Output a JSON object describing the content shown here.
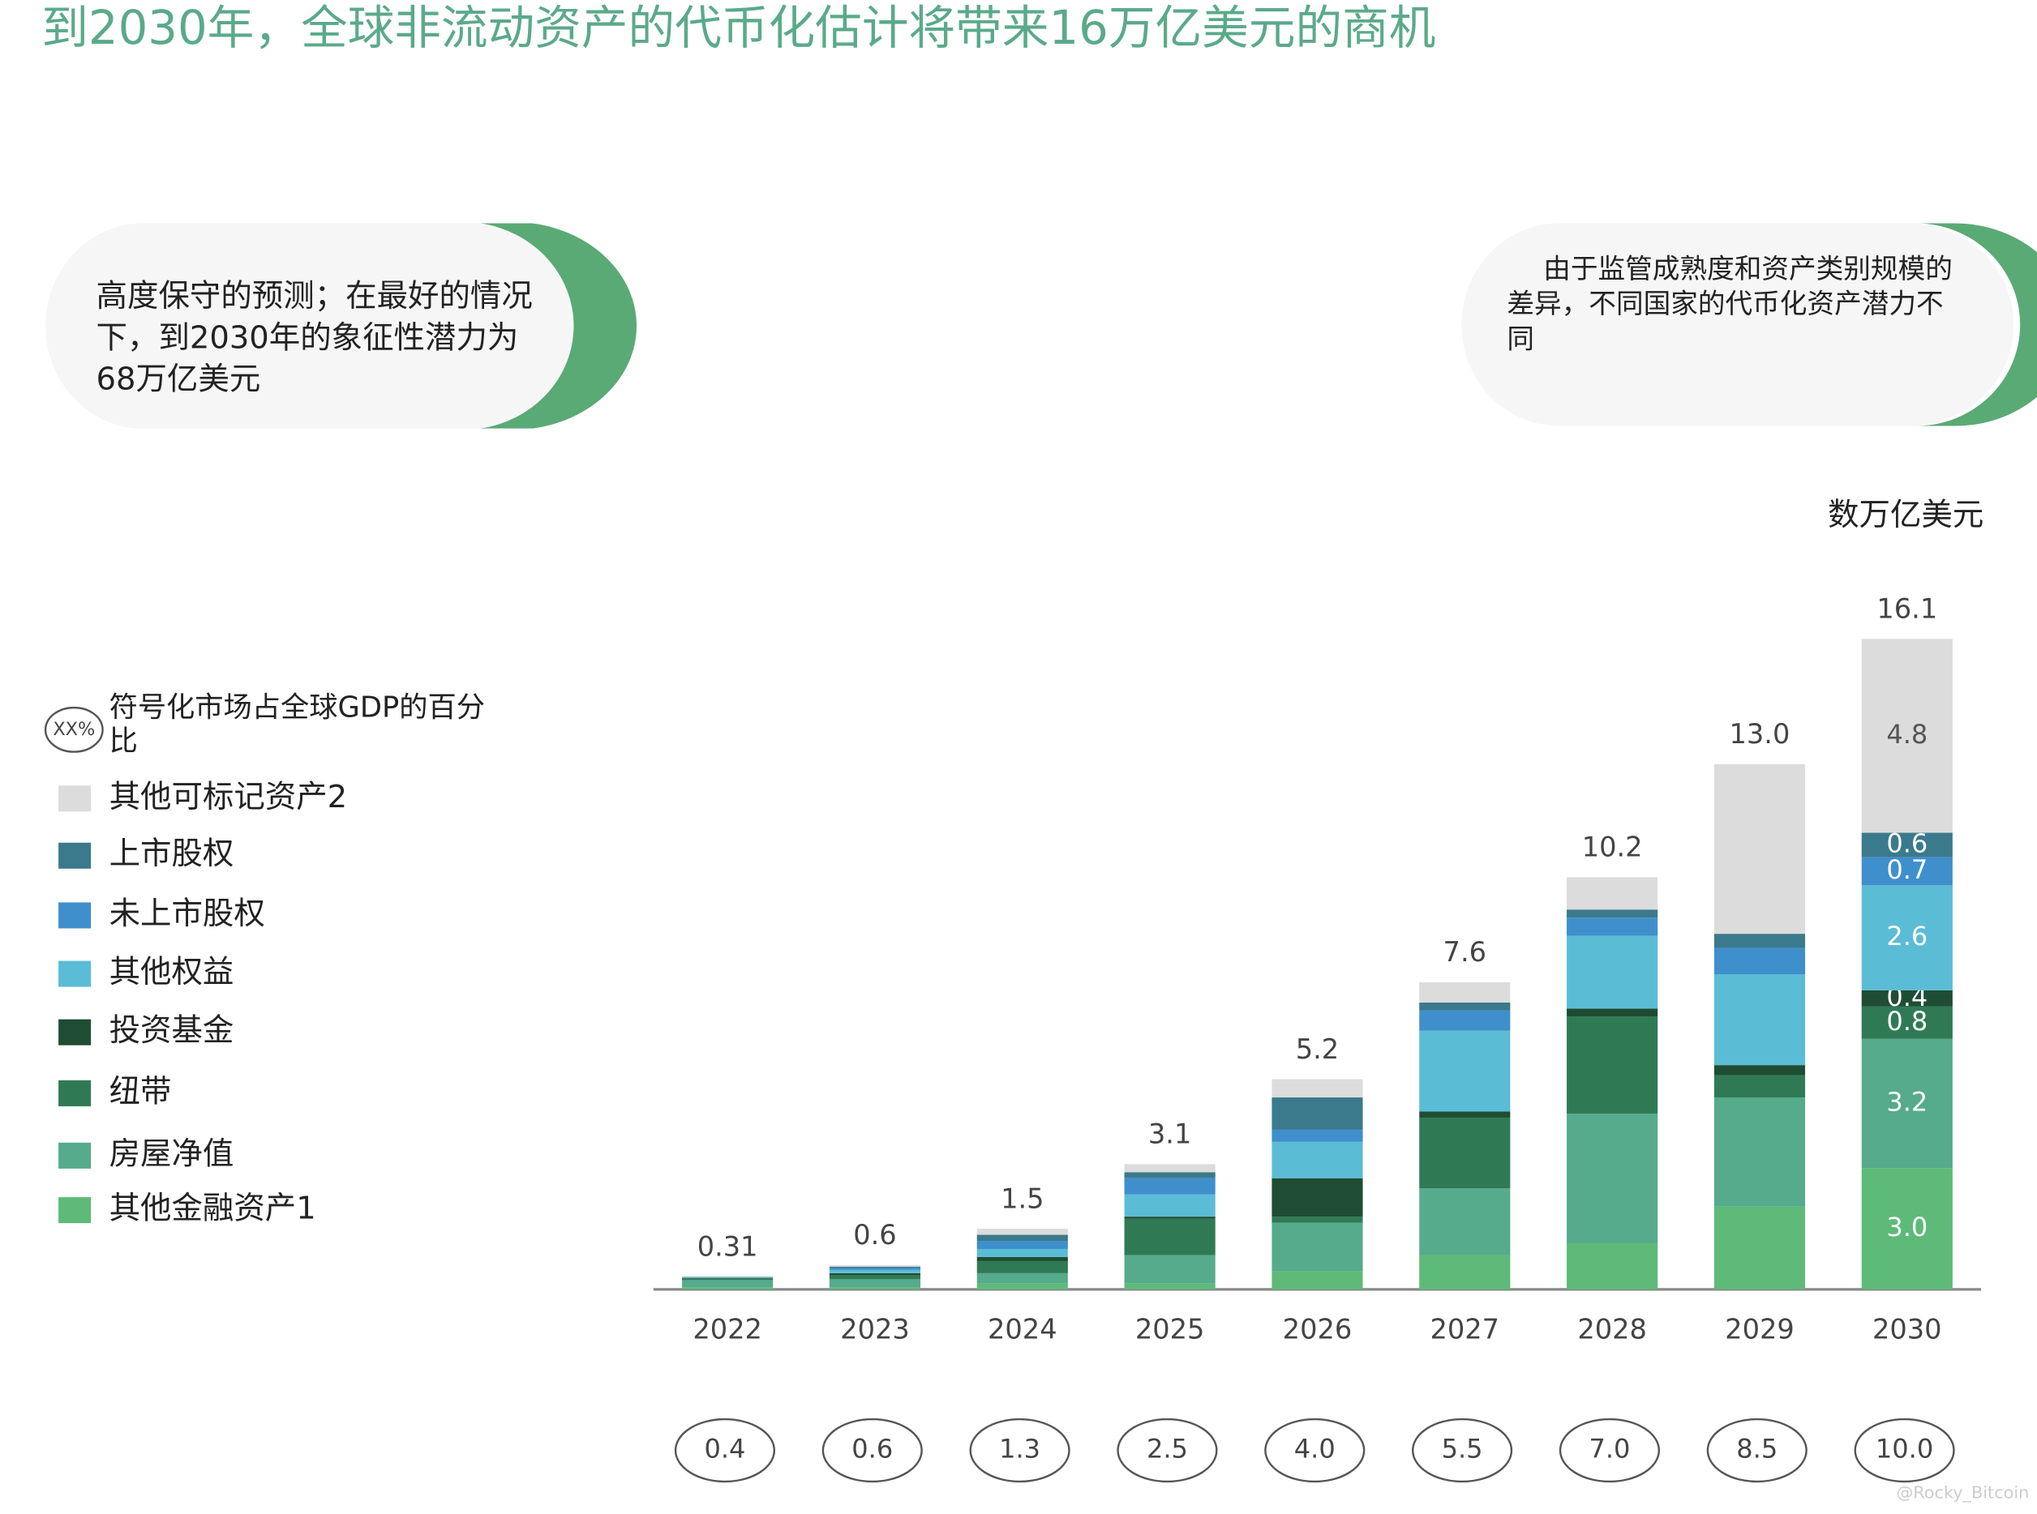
{
  "chart_data": {
    "type": "stacked_bar",
    "title": "到2030年，全球非流动资产的代币化估计将带来16万亿美元的商机",
    "callout_left": "高度保守的预测；在最好的情况下，到2030年的象征性潜力为68万亿美元",
    "callout_right": "由于监管成熟度和资产类别规模的差异，不同国家的代币化资产潜力不同",
    "unit_label": "数万亿美元",
    "gdp_legend_symbol": "XX%",
    "gdp_legend_label": "符号化市场占全球GDP的百分比",
    "watermark": "@Rocky_Bitcoin",
    "categories": [
      "2022",
      "2023",
      "2024",
      "2025",
      "2026",
      "2027",
      "2028",
      "2029",
      "2030"
    ],
    "series": [
      {
        "name": "其他金融资产1",
        "color": "#5dba78",
        "values": [
          0.05,
          0.05,
          0.15,
          0.15,
          0.45,
          0.85,
          1.15,
          2.05,
          3.0
        ],
        "value_labels": [
          null,
          null,
          null,
          null,
          null,
          null,
          null,
          null,
          "3.0"
        ]
      },
      {
        "name": "房屋净值",
        "color": "#55ab8c",
        "values": [
          0.18,
          0.2,
          0.25,
          0.7,
          1.2,
          1.65,
          3.2,
          2.7,
          3.2
        ],
        "value_labels": [
          null,
          null,
          null,
          null,
          null,
          null,
          null,
          null,
          "3.2"
        ]
      },
      {
        "name": "纽带",
        "color": "#2f7a55",
        "values": [
          0.04,
          0.1,
          0.3,
          0.9,
          0.15,
          1.75,
          2.4,
          0.55,
          0.8
        ],
        "value_labels": [
          null,
          null,
          null,
          null,
          null,
          null,
          null,
          null,
          "0.8"
        ]
      },
      {
        "name": "投资基金",
        "color": "#1e4d33",
        "values": [
          0.01,
          0.05,
          0.1,
          0.05,
          0.95,
          0.15,
          0.2,
          0.25,
          0.4
        ],
        "value_labels": [
          null,
          null,
          null,
          null,
          null,
          null,
          null,
          null,
          "0.4"
        ]
      },
      {
        "name": "其他权益",
        "color": "#5bbcd6",
        "values": [
          0.01,
          0.08,
          0.2,
          0.55,
          0.9,
          2.0,
          1.8,
          2.25,
          2.6
        ],
        "value_labels": [
          null,
          null,
          null,
          null,
          null,
          null,
          null,
          null,
          "2.6"
        ]
      },
      {
        "name": "未上市股权",
        "color": "#3f8fcc",
        "values": [
          0.01,
          0.05,
          0.2,
          0.4,
          0.3,
          0.5,
          0.45,
          0.65,
          0.7
        ],
        "value_labels": [
          null,
          null,
          null,
          null,
          null,
          null,
          null,
          null,
          "0.7"
        ]
      },
      {
        "name": "上市股权",
        "color": "#3a7a8c",
        "values": [
          0.01,
          0.03,
          0.15,
          0.15,
          0.8,
          0.2,
          0.2,
          0.35,
          0.6
        ],
        "value_labels": [
          null,
          null,
          null,
          null,
          null,
          null,
          null,
          null,
          "0.6"
        ]
      },
      {
        "name": "其他可标记资产2",
        "color": "#dcdcdc",
        "values": [
          0,
          0.04,
          0.15,
          0.2,
          0.45,
          0.5,
          0.8,
          4.2,
          4.8
        ],
        "value_labels": [
          null,
          null,
          null,
          null,
          null,
          null,
          null,
          null,
          "4.8"
        ]
      }
    ],
    "totals": [
      0.31,
      0.6,
      1.5,
      3.1,
      5.2,
      7.6,
      10.2,
      13.0,
      16.1
    ],
    "total_labels": [
      "0.31",
      "0.6",
      "1.5",
      "3.1",
      "5.2",
      "7.6",
      "10.2",
      "13.0",
      "16.1"
    ],
    "gdp_share": [
      0.4,
      0.6,
      1.3,
      2.5,
      4.0,
      5.5,
      7.0,
      8.5,
      10.0
    ],
    "gdp_share_labels": [
      "0.4",
      "0.6",
      "1.3",
      "2.5",
      "4.0",
      "5.5",
      "7.0",
      "8.5",
      "10.0"
    ]
  }
}
